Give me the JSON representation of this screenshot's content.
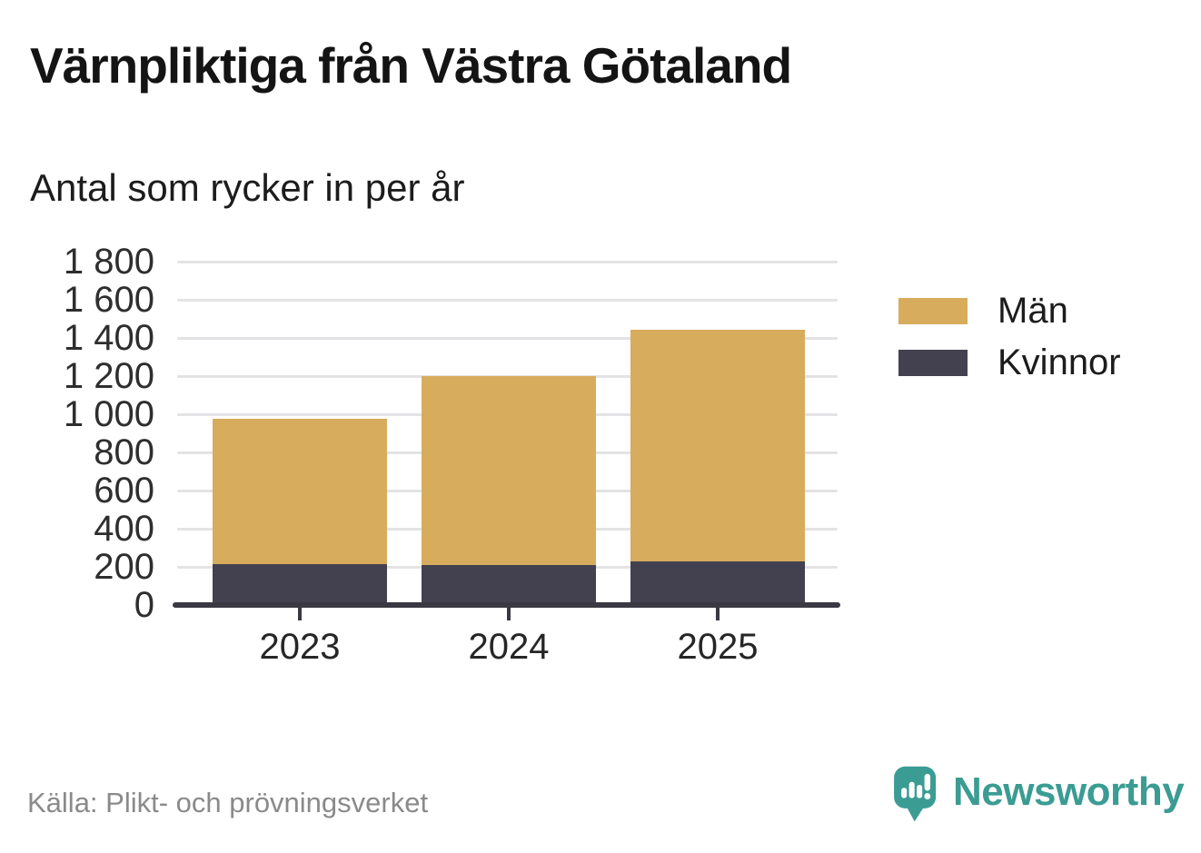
{
  "title": "Värnpliktiga från Västra Götaland",
  "subtitle": "Antal som rycker in per år",
  "source": "Källa: Plikt- och prövningsverket",
  "brand": {
    "name": "Newsworthy",
    "color": "#3b9c93"
  },
  "colors": {
    "men": "#d7ac5c",
    "women": "#434150",
    "grid": "#e3e3e5",
    "axis": "#3a3842",
    "title_text": "#141414",
    "muted_text": "#8a8a8a"
  },
  "legend": [
    {
      "label": "Män",
      "color": "#d7ac5c"
    },
    {
      "label": "Kvinnor",
      "color": "#434150"
    }
  ],
  "chart_data": {
    "type": "bar",
    "stacked": true,
    "title": "Värnpliktiga från Västra Götaland",
    "subtitle": "Antal som rycker in per år",
    "categories": [
      "2023",
      "2024",
      "2025"
    ],
    "series": [
      {
        "name": "Män",
        "color": "#d7ac5c",
        "values": [
          760,
          990,
          1215
        ]
      },
      {
        "name": "Kvinnor",
        "color": "#434150",
        "values": [
          215,
          210,
          230
        ]
      }
    ],
    "stack_totals": [
      975,
      1200,
      1445
    ],
    "xlabel": "",
    "ylabel": "",
    "ylim": [
      0,
      1800
    ],
    "ytick_step": 200,
    "ytick_labels": [
      "0",
      "200",
      "400",
      "600",
      "800",
      "1 000",
      "1 200",
      "1 400",
      "1 600",
      "1 800"
    ],
    "grid": true,
    "legend_position": "right"
  }
}
